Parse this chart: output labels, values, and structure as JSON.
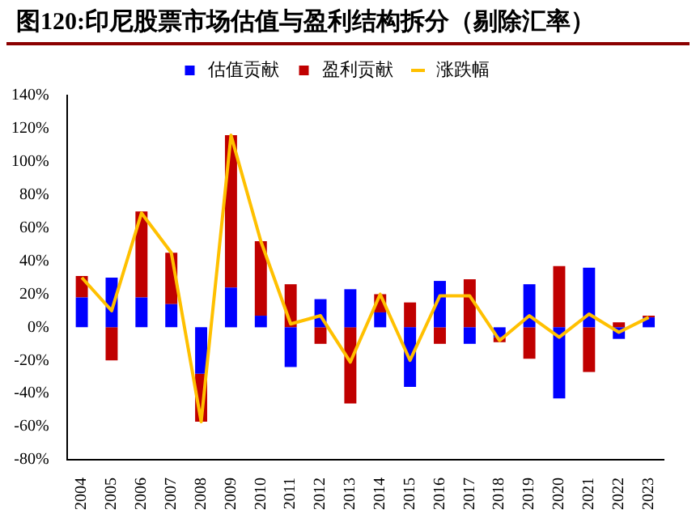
{
  "chart_data": {
    "type": "bar",
    "title": "图120:印尼股票市场估值与盈利结构拆分（剔除汇率）",
    "categories": [
      "2004",
      "2005",
      "2006",
      "2007",
      "2008",
      "2009",
      "2010",
      "2011",
      "2012",
      "2013",
      "2014",
      "2015",
      "2016",
      "2017",
      "2018",
      "2019",
      "2020",
      "2021",
      "2022",
      "2023"
    ],
    "stacked": true,
    "legend": "top",
    "grid": false,
    "marker": "none",
    "line_style": "solid",
    "ylim": [
      -80,
      140
    ],
    "yticks": [
      {
        "value": -80,
        "label": "-80%"
      },
      {
        "value": -60,
        "label": "-60%"
      },
      {
        "value": -40,
        "label": "-40%"
      },
      {
        "value": -20,
        "label": "-20%"
      },
      {
        "value": 0,
        "label": "0%"
      },
      {
        "value": 20,
        "label": "20%"
      },
      {
        "value": 40,
        "label": "40%"
      },
      {
        "value": 60,
        "label": "60%"
      },
      {
        "value": 80,
        "label": "80%"
      },
      {
        "value": 100,
        "label": "100%"
      },
      {
        "value": 120,
        "label": "120%"
      },
      {
        "value": 140,
        "label": "140%"
      }
    ],
    "series": [
      {
        "name": "估值贡献",
        "color": "#0000ff",
        "values": [
          18,
          30,
          18,
          14,
          -28,
          24,
          7,
          -24,
          17,
          23,
          9,
          -36,
          28,
          -10,
          -6,
          26,
          -43,
          36,
          -7,
          6
        ]
      },
      {
        "name": "盈利贡献",
        "color": "#c00000",
        "values": [
          13,
          -20,
          52,
          31,
          -29,
          92,
          45,
          26,
          -10,
          -46,
          11,
          15,
          -10,
          29,
          -3,
          -19,
          37,
          -27,
          3,
          1
        ]
      },
      {
        "name": "涨跌幅",
        "type": "line",
        "color": "#ffc000",
        "values": [
          30,
          10,
          69,
          45,
          -57,
          116,
          52,
          2,
          7,
          -21,
          20,
          -20,
          19,
          19,
          -8,
          7,
          -6,
          8,
          -3,
          6
        ]
      }
    ]
  }
}
